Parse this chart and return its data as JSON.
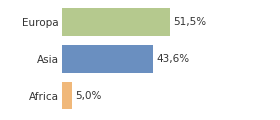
{
  "categories": [
    "Europa",
    "Asia",
    "Africa"
  ],
  "values": [
    51.5,
    43.6,
    5.0
  ],
  "labels": [
    "51,5%",
    "43,6%",
    "5,0%"
  ],
  "bar_colors": [
    "#b5c98e",
    "#6a8fc0",
    "#f0b87a"
  ],
  "background_color": "#ffffff",
  "xlim": [
    0,
    80
  ],
  "label_fontsize": 7.5,
  "value_fontsize": 7.5,
  "bar_height": 0.75
}
